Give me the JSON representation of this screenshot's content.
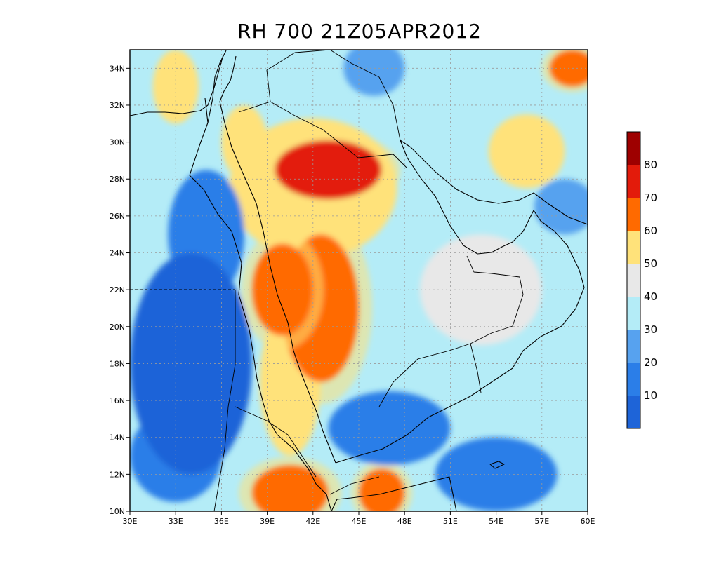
{
  "title": "RH 700 21Z05APR2012",
  "map": {
    "lon_range": [
      30,
      60
    ],
    "lat_range": [
      10,
      35
    ],
    "lon_ticks": [
      {
        "value": 30,
        "label": "30E"
      },
      {
        "value": 33,
        "label": "33E"
      },
      {
        "value": 36,
        "label": "36E"
      },
      {
        "value": 39,
        "label": "39E"
      },
      {
        "value": 42,
        "label": "42E"
      },
      {
        "value": 45,
        "label": "45E"
      },
      {
        "value": 48,
        "label": "48E"
      },
      {
        "value": 51,
        "label": "51E"
      },
      {
        "value": 54,
        "label": "54E"
      },
      {
        "value": 57,
        "label": "57E"
      },
      {
        "value": 60,
        "label": "60E"
      }
    ],
    "lat_ticks": [
      {
        "value": 10,
        "label": "10N"
      },
      {
        "value": 12,
        "label": "12N"
      },
      {
        "value": 14,
        "label": "14N"
      },
      {
        "value": 16,
        "label": "16N"
      },
      {
        "value": 18,
        "label": "18N"
      },
      {
        "value": 20,
        "label": "20N"
      },
      {
        "value": 22,
        "label": "22N"
      },
      {
        "value": 24,
        "label": "24N"
      },
      {
        "value": 26,
        "label": "26N"
      },
      {
        "value": 28,
        "label": "28N"
      },
      {
        "value": 30,
        "label": "30N"
      },
      {
        "value": 32,
        "label": "32N"
      },
      {
        "value": 34,
        "label": "34N"
      }
    ],
    "grid": true
  },
  "colorbar": {
    "levels": [
      {
        "label": "",
        "color": "#1e64d8"
      },
      {
        "label": "10",
        "color": "#2b7ee8"
      },
      {
        "label": "20",
        "color": "#57a2ef"
      },
      {
        "label": "30",
        "color": "#b4ecf7"
      },
      {
        "label": "40",
        "color": "#e8e8e8"
      },
      {
        "label": "50",
        "color": "#ffe27a"
      },
      {
        "label": "60",
        "color": "#ff6a00"
      },
      {
        "label": "70",
        "color": "#e31b0b"
      },
      {
        "label": "80",
        "color": "#9e0000"
      }
    ]
  },
  "chart_data": {
    "type": "heatmap",
    "title": "RH 700 21Z05APR2012",
    "variable": "RH",
    "level": "700",
    "x_range": [
      30,
      60
    ],
    "y_range": [
      10,
      35
    ],
    "contour_levels": [
      10,
      20,
      30,
      40,
      50,
      60,
      70,
      80
    ],
    "regions": [
      {
        "lon": 43.0,
        "lat": 28.5,
        "rh": 72,
        "rlon": 3.5,
        "rlat": 1.6
      },
      {
        "lon": 42.0,
        "lat": 27.5,
        "rh": 58,
        "rlon": 5.5,
        "rlat": 3.8
      },
      {
        "lon": 40.0,
        "lat": 22.0,
        "rh": 68,
        "rlon": 2.0,
        "rlat": 2.5
      },
      {
        "lon": 42.5,
        "lat": 21.0,
        "rh": 62,
        "rlon": 2.5,
        "rlat": 4.0
      },
      {
        "lon": 40.5,
        "lat": 17.0,
        "rh": 55,
        "rlon": 2.0,
        "rlat": 4.0
      },
      {
        "lon": 40.5,
        "lat": 11.0,
        "rh": 68,
        "rlon": 2.5,
        "rlat": 1.5
      },
      {
        "lon": 46.5,
        "lat": 11.0,
        "rh": 60,
        "rlon": 1.5,
        "rlat": 1.3
      },
      {
        "lon": 56.0,
        "lat": 29.5,
        "rh": 58,
        "rlon": 2.5,
        "rlat": 2.0
      },
      {
        "lon": 59.0,
        "lat": 34.0,
        "rh": 60,
        "rlon": 1.5,
        "rlat": 1.0
      },
      {
        "lon": 33.0,
        "lat": 33.0,
        "rh": 58,
        "rlon": 1.5,
        "rlat": 2.0
      },
      {
        "lon": 37.5,
        "lat": 30.0,
        "rh": 52,
        "rlon": 1.5,
        "rlat": 2.0
      },
      {
        "lon": 34.0,
        "lat": 18.0,
        "rh": 8,
        "rlon": 4.0,
        "rlat": 6.0
      },
      {
        "lon": 33.0,
        "lat": 13.0,
        "rh": 10,
        "rlon": 3.0,
        "rlat": 2.5
      },
      {
        "lon": 35.0,
        "lat": 25.0,
        "rh": 15,
        "rlon": 2.5,
        "rlat": 3.5
      },
      {
        "lon": 47.0,
        "lat": 14.5,
        "rh": 10,
        "rlon": 4.0,
        "rlat": 2.0
      },
      {
        "lon": 54.0,
        "lat": 12.0,
        "rh": 15,
        "rlon": 4.0,
        "rlat": 2.0
      },
      {
        "lon": 58.5,
        "lat": 26.5,
        "rh": 20,
        "rlon": 2.0,
        "rlat": 1.5
      },
      {
        "lon": 53.0,
        "lat": 22.0,
        "rh": 40,
        "rlon": 4.0,
        "rlat": 3.0
      },
      {
        "lon": 46.0,
        "lat": 34.0,
        "rh": 20,
        "rlon": 2.0,
        "rlat": 1.5
      }
    ]
  }
}
